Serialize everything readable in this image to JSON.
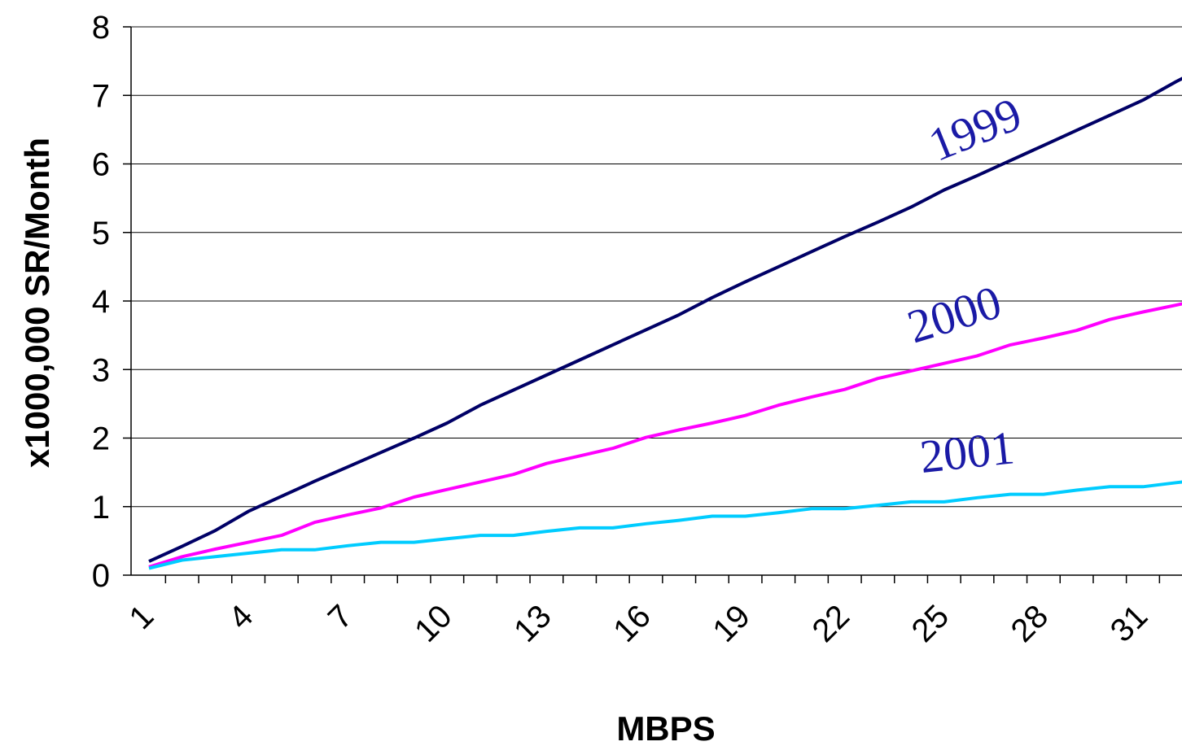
{
  "chart_data": {
    "type": "line",
    "xlabel": "MBPS",
    "ylabel": "x1000,000 SR/Month",
    "ylim": [
      0,
      8
    ],
    "yticks": [
      "0",
      "1",
      "2",
      "3",
      "4",
      "5",
      "6",
      "7",
      "8"
    ],
    "x": [
      1,
      2,
      3,
      4,
      5,
      6,
      7,
      8,
      9,
      10,
      11,
      12,
      13,
      14,
      15,
      16,
      17,
      18,
      19,
      20,
      21,
      22,
      23,
      24,
      25,
      26,
      27,
      28,
      29,
      30,
      31,
      32,
      33
    ],
    "xtick_labels": [
      "1",
      "4",
      "7",
      "10",
      "13",
      "16",
      "19",
      "22",
      "25",
      "28",
      "31"
    ],
    "grid": "horizontal",
    "series": [
      {
        "name": "1999",
        "color": "#000066",
        "label_color": "#1a1aa6",
        "values": [
          0.2,
          0.42,
          0.65,
          0.93,
          1.15,
          1.37,
          1.58,
          1.79,
          2.0,
          2.22,
          2.48,
          2.7,
          2.92,
          3.14,
          3.36,
          3.58,
          3.8,
          4.05,
          4.28,
          4.5,
          4.72,
          4.94,
          5.15,
          5.37,
          5.62,
          5.83,
          6.05,
          6.27,
          6.49,
          6.71,
          6.93,
          7.2,
          7.45
        ]
      },
      {
        "name": "2000",
        "color": "#ff00ff",
        "label_color": "#1a1aa6",
        "values": [
          0.12,
          0.27,
          0.38,
          0.48,
          0.58,
          0.77,
          0.88,
          0.98,
          1.14,
          1.25,
          1.36,
          1.47,
          1.63,
          1.74,
          1.85,
          2.01,
          2.12,
          2.22,
          2.33,
          2.48,
          2.6,
          2.71,
          2.87,
          2.98,
          3.09,
          3.2,
          3.36,
          3.46,
          3.57,
          3.73,
          3.84,
          3.94,
          4.05
        ]
      },
      {
        "name": "2001",
        "color": "#00ccff",
        "label_color": "#1a1aa6",
        "values": [
          0.1,
          0.22,
          0.27,
          0.32,
          0.37,
          0.37,
          0.43,
          0.48,
          0.48,
          0.53,
          0.58,
          0.58,
          0.64,
          0.69,
          0.69,
          0.75,
          0.8,
          0.86,
          0.86,
          0.91,
          0.97,
          0.97,
          1.02,
          1.07,
          1.07,
          1.13,
          1.18,
          1.18,
          1.24,
          1.29,
          1.29,
          1.35,
          1.4
        ]
      }
    ]
  }
}
